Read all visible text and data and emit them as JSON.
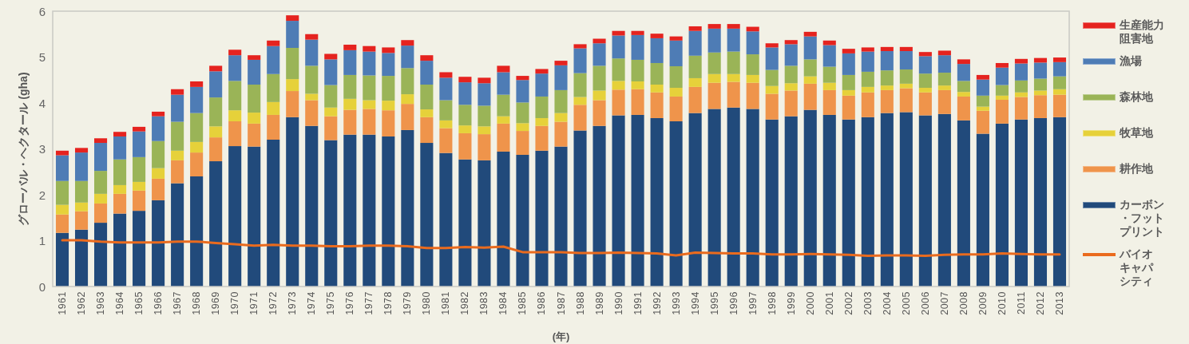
{
  "chart_data": {
    "type": "bar",
    "stacked": true,
    "ylabel": "グローバル・ヘクタール (gha)",
    "xlabel": "(年)",
    "legend": "right",
    "ylim": [
      0,
      6
    ],
    "yticks": [
      0,
      1,
      2,
      3,
      4,
      5,
      6
    ],
    "categories": [
      "1961",
      "1962",
      "1963",
      "1964",
      "1965",
      "1966",
      "1967",
      "1968",
      "1969",
      "1970",
      "1971",
      "1972",
      "1973",
      "1974",
      "1975",
      "1976",
      "1977",
      "1978",
      "1979",
      "1980",
      "1981",
      "1982",
      "1983",
      "1984",
      "1985",
      "1986",
      "1987",
      "1988",
      "1989",
      "1990",
      "1991",
      "1992",
      "1993",
      "1994",
      "1995",
      "1996",
      "1997",
      "1998",
      "1999",
      "2000",
      "2001",
      "2002",
      "2003",
      "2004",
      "2005",
      "2006",
      "2007",
      "2008",
      "2009",
      "2010",
      "2011",
      "2012",
      "2013"
    ],
    "series": [
      {
        "name": "カーボン・フットプリント",
        "color": "#214a7b",
        "values": [
          1.17,
          1.24,
          1.39,
          1.59,
          1.65,
          1.88,
          2.25,
          2.4,
          2.73,
          3.06,
          3.05,
          3.2,
          3.69,
          3.5,
          3.19,
          3.31,
          3.31,
          3.27,
          3.41,
          3.13,
          2.91,
          2.77,
          2.75,
          2.94,
          2.87,
          2.96,
          3.05,
          3.4,
          3.5,
          3.73,
          3.74,
          3.67,
          3.6,
          3.78,
          3.87,
          3.9,
          3.87,
          3.64,
          3.71,
          3.85,
          3.74,
          3.64,
          3.69,
          3.78,
          3.8,
          3.73,
          3.76,
          3.62,
          3.33,
          3.55,
          3.64,
          3.67,
          3.69
        ]
      },
      {
        "name": "耕作地",
        "color": "#ef944b",
        "values": [
          0.4,
          0.4,
          0.42,
          0.43,
          0.44,
          0.47,
          0.5,
          0.52,
          0.52,
          0.54,
          0.5,
          0.54,
          0.57,
          0.56,
          0.52,
          0.54,
          0.56,
          0.57,
          0.57,
          0.56,
          0.54,
          0.57,
          0.57,
          0.61,
          0.52,
          0.54,
          0.54,
          0.56,
          0.56,
          0.56,
          0.56,
          0.56,
          0.54,
          0.57,
          0.57,
          0.56,
          0.57,
          0.56,
          0.56,
          0.57,
          0.54,
          0.52,
          0.54,
          0.5,
          0.52,
          0.5,
          0.52,
          0.52,
          0.5,
          0.52,
          0.49,
          0.5,
          0.49
        ]
      },
      {
        "name": "牧草地",
        "color": "#e6d13a",
        "values": [
          0.21,
          0.19,
          0.21,
          0.19,
          0.19,
          0.23,
          0.21,
          0.23,
          0.24,
          0.24,
          0.24,
          0.28,
          0.26,
          0.14,
          0.19,
          0.24,
          0.19,
          0.21,
          0.21,
          0.17,
          0.17,
          0.17,
          0.17,
          0.16,
          0.17,
          0.17,
          0.19,
          0.17,
          0.21,
          0.19,
          0.17,
          0.17,
          0.19,
          0.19,
          0.19,
          0.17,
          0.17,
          0.17,
          0.16,
          0.16,
          0.16,
          0.12,
          0.12,
          0.1,
          0.1,
          0.1,
          0.1,
          0.1,
          0.09,
          0.09,
          0.1,
          0.1,
          0.12
        ]
      },
      {
        "name": "森林地",
        "color": "#9ab457",
        "values": [
          0.52,
          0.47,
          0.5,
          0.56,
          0.54,
          0.59,
          0.63,
          0.63,
          0.63,
          0.64,
          0.61,
          0.61,
          0.68,
          0.61,
          0.49,
          0.52,
          0.54,
          0.54,
          0.57,
          0.54,
          0.44,
          0.45,
          0.45,
          0.47,
          0.45,
          0.47,
          0.5,
          0.52,
          0.54,
          0.49,
          0.47,
          0.47,
          0.47,
          0.49,
          0.47,
          0.49,
          0.45,
          0.35,
          0.38,
          0.37,
          0.35,
          0.33,
          0.33,
          0.33,
          0.31,
          0.31,
          0.28,
          0.24,
          0.24,
          0.23,
          0.26,
          0.26,
          0.28
        ]
      },
      {
        "name": "漁場",
        "color": "#4e7cb5",
        "values": [
          0.56,
          0.62,
          0.61,
          0.5,
          0.56,
          0.54,
          0.59,
          0.57,
          0.57,
          0.56,
          0.54,
          0.61,
          0.59,
          0.57,
          0.56,
          0.54,
          0.52,
          0.5,
          0.49,
          0.52,
          0.49,
          0.49,
          0.49,
          0.49,
          0.49,
          0.5,
          0.54,
          0.54,
          0.49,
          0.5,
          0.54,
          0.54,
          0.56,
          0.54,
          0.52,
          0.5,
          0.5,
          0.49,
          0.47,
          0.5,
          0.47,
          0.47,
          0.44,
          0.42,
          0.4,
          0.38,
          0.38,
          0.37,
          0.35,
          0.38,
          0.37,
          0.35,
          0.31
        ]
      },
      {
        "name": "生産能力阻害地",
        "color": "#e5231f",
        "values": [
          0.1,
          0.1,
          0.1,
          0.1,
          0.1,
          0.1,
          0.12,
          0.12,
          0.12,
          0.12,
          0.1,
          0.12,
          0.12,
          0.12,
          0.12,
          0.12,
          0.12,
          0.12,
          0.12,
          0.12,
          0.12,
          0.12,
          0.12,
          0.14,
          0.09,
          0.1,
          0.1,
          0.09,
          0.1,
          0.1,
          0.09,
          0.1,
          0.09,
          0.1,
          0.1,
          0.1,
          0.1,
          0.09,
          0.09,
          0.1,
          0.1,
          0.1,
          0.09,
          0.09,
          0.09,
          0.09,
          0.1,
          0.1,
          0.1,
          0.1,
          0.1,
          0.1,
          0.1
        ]
      },
      {
        "name": "バイオキャパシティ",
        "type": "line",
        "color": "#ea6b1e",
        "values": [
          1.01,
          1.01,
          0.98,
          0.96,
          0.96,
          0.96,
          0.98,
          0.98,
          0.95,
          0.92,
          0.89,
          0.91,
          0.89,
          0.89,
          0.88,
          0.88,
          0.89,
          0.89,
          0.88,
          0.84,
          0.84,
          0.86,
          0.85,
          0.87,
          0.75,
          0.75,
          0.75,
          0.73,
          0.73,
          0.74,
          0.73,
          0.72,
          0.68,
          0.74,
          0.73,
          0.72,
          0.72,
          0.7,
          0.7,
          0.71,
          0.7,
          0.69,
          0.67,
          0.68,
          0.68,
          0.67,
          0.69,
          0.7,
          0.7,
          0.72,
          0.71,
          0.7,
          0.7
        ]
      }
    ]
  }
}
